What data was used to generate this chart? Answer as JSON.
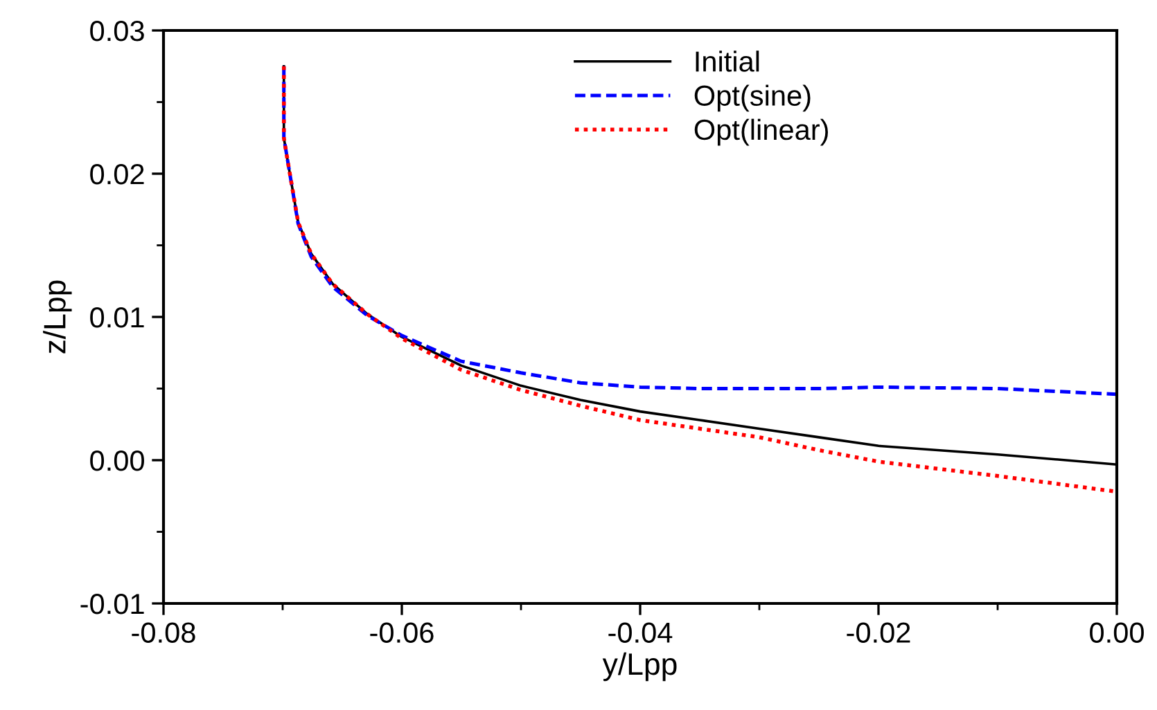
{
  "chart_data": {
    "type": "line",
    "xlabel": "y/Lpp",
    "ylabel": "z/Lpp",
    "xlim": [
      -0.08,
      0.0
    ],
    "ylim": [
      -0.01,
      0.03
    ],
    "xticks": [
      {
        "value": -0.08,
        "label": "-0.08"
      },
      {
        "value": -0.06,
        "label": "-0.06"
      },
      {
        "value": -0.04,
        "label": "-0.04"
      },
      {
        "value": -0.02,
        "label": "-0.02"
      },
      {
        "value": 0.0,
        "label": "0.00"
      }
    ],
    "yticks": [
      {
        "value": -0.01,
        "label": "-0.01"
      },
      {
        "value": 0.0,
        "label": "0.00"
      },
      {
        "value": 0.01,
        "label": "0.01"
      },
      {
        "value": 0.02,
        "label": "0.02"
      },
      {
        "value": 0.03,
        "label": "0.03"
      }
    ],
    "legend": "top right",
    "grid": false,
    "series": [
      {
        "name": "Initial",
        "color": "#000000",
        "line_style": "solid",
        "x": [
          -0.0699,
          -0.0699,
          -0.0695,
          -0.0687,
          -0.0676,
          -0.0658,
          -0.0629,
          -0.06,
          -0.055,
          -0.05,
          -0.045,
          -0.04,
          -0.035,
          -0.03,
          -0.025,
          -0.02,
          -0.01,
          0.0
        ],
        "values": [
          0.0275,
          0.0225,
          0.0205,
          0.0166,
          0.0144,
          0.0123,
          0.0102,
          0.0086,
          0.0066,
          0.0052,
          0.0042,
          0.0034,
          0.0028,
          0.0022,
          0.0016,
          0.001,
          0.0004,
          -0.0003
        ]
      },
      {
        "name": "Opt(sine)",
        "color": "#0000ff",
        "line_style": "dashed",
        "x": [
          -0.0699,
          -0.0699,
          -0.0695,
          -0.0687,
          -0.0676,
          -0.0658,
          -0.0629,
          -0.06,
          -0.055,
          -0.05,
          -0.045,
          -0.04,
          -0.035,
          -0.03,
          -0.025,
          -0.02,
          -0.01,
          0.0
        ],
        "values": [
          0.0275,
          0.0225,
          0.0205,
          0.0165,
          0.0142,
          0.0121,
          0.0101,
          0.0087,
          0.0069,
          0.0061,
          0.0054,
          0.0051,
          0.005,
          0.005,
          0.005,
          0.0051,
          0.005,
          0.0046
        ]
      },
      {
        "name": "Opt(linear)",
        "color": "#ff0000",
        "line_style": "dotted",
        "x": [
          -0.0699,
          -0.0699,
          -0.0695,
          -0.0687,
          -0.0676,
          -0.0658,
          -0.0629,
          -0.06,
          -0.055,
          -0.05,
          -0.045,
          -0.04,
          -0.035,
          -0.03,
          -0.025,
          -0.02,
          -0.01,
          0.0
        ],
        "values": [
          0.0275,
          0.0225,
          0.0205,
          0.0166,
          0.0144,
          0.0123,
          0.0102,
          0.0085,
          0.0063,
          0.0049,
          0.0038,
          0.0028,
          0.0022,
          0.0016,
          0.0007,
          -0.0001,
          -0.0011,
          -0.0022
        ]
      }
    ]
  }
}
